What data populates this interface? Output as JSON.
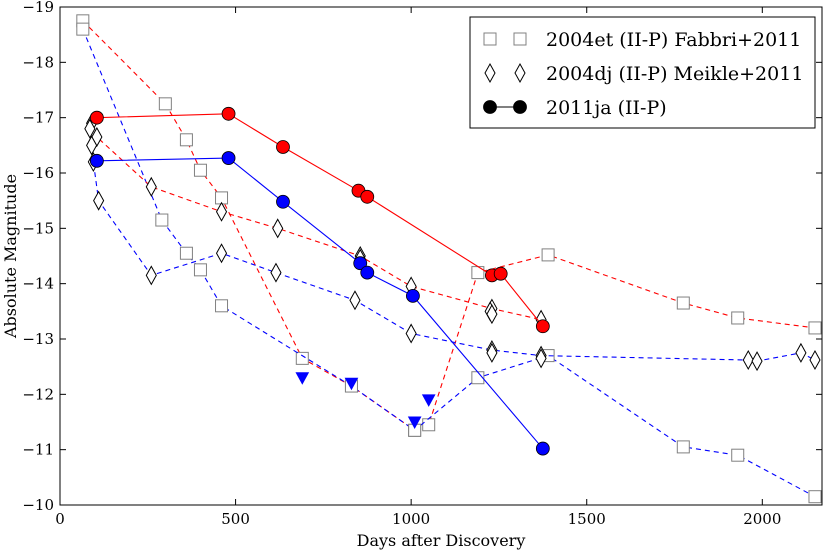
{
  "chart_data": {
    "type": "line",
    "title": "",
    "xlabel": "Days after Discovery",
    "ylabel": "Absolute Magnitude",
    "xlim": [
      0,
      2170
    ],
    "ylim": [
      -19,
      -10
    ],
    "y_inverted": true,
    "grid": false,
    "legend_position": "top-right",
    "xticks": [
      0,
      500,
      1000,
      1500,
      2000
    ],
    "yticks": [
      -19,
      -18,
      -17,
      -16,
      -15,
      -14,
      -13,
      -12,
      -11,
      -10
    ],
    "xtick_labels": [
      "0",
      "500",
      "1000",
      "1500",
      "2000"
    ],
    "ytick_labels": [
      "−19",
      "−18",
      "−17",
      "−16",
      "−15",
      "−14",
      "−13",
      "−12",
      "−11",
      "−10"
    ],
    "legend": [
      {
        "label": "2004et (II-P) Fabbri+2011",
        "marker": "square"
      },
      {
        "label": "2004dj (II-P) Meikle+2011",
        "marker": "diamond"
      },
      {
        "label": "2011ja (II-P)",
        "marker": "circle"
      }
    ],
    "colors": {
      "red": "#ff0000",
      "blue": "#0000ff",
      "marker_edge": "#000000",
      "open_marker_edge": "#808080"
    },
    "series": [
      {
        "name": "2004et red",
        "color": "#ff0000",
        "dashed": true,
        "marker": "square",
        "points": [
          [
            65,
            -18.75
          ],
          [
            300,
            -17.25
          ],
          [
            360,
            -16.6
          ],
          [
            400,
            -16.05
          ],
          [
            460,
            -15.55
          ],
          [
            690,
            -12.65
          ],
          [
            830,
            -12.15
          ],
          [
            1010,
            -11.35
          ],
          [
            1050,
            -11.45
          ],
          [
            1190,
            -14.2
          ],
          [
            1390,
            -14.52
          ],
          [
            1775,
            -13.65
          ],
          [
            1930,
            -13.38
          ],
          [
            2150,
            -13.2
          ]
        ]
      },
      {
        "name": "2004et blue",
        "color": "#0000ff",
        "dashed": true,
        "marker": "square",
        "points": [
          [
            65,
            -18.6
          ],
          [
            290,
            -15.15
          ],
          [
            360,
            -14.55
          ],
          [
            400,
            -14.25
          ],
          [
            460,
            -13.6
          ],
          [
            830,
            -12.15
          ],
          [
            1010,
            -11.35
          ],
          [
            1190,
            -12.3
          ],
          [
            1390,
            -12.7
          ],
          [
            1775,
            -11.05
          ],
          [
            1930,
            -10.9
          ],
          [
            2150,
            -10.15
          ]
        ]
      },
      {
        "name": "2004et blue limits",
        "color": "#0000ff",
        "dashed": false,
        "marker": "triangle-down",
        "points": [
          [
            690,
            -12.3
          ],
          [
            830,
            -12.2
          ],
          [
            1010,
            -11.5
          ],
          [
            1050,
            -11.9
          ]
        ]
      },
      {
        "name": "2004dj red",
        "color": "#ff0000",
        "dashed": true,
        "marker": "diamond",
        "points": [
          [
            90,
            -16.9
          ],
          [
            105,
            -16.65
          ],
          [
            260,
            -15.75
          ],
          [
            460,
            -15.3
          ],
          [
            620,
            -15.0
          ],
          [
            855,
            -14.5
          ],
          [
            1000,
            -13.95
          ],
          [
            1230,
            -13.55
          ],
          [
            1370,
            -13.35
          ]
        ]
      },
      {
        "name": "2004dj blue",
        "color": "#0000ff",
        "dashed": true,
        "marker": "diamond",
        "points": [
          [
            90,
            -16.5
          ],
          [
            95,
            -16.2
          ],
          [
            110,
            -15.5
          ],
          [
            260,
            -14.15
          ],
          [
            460,
            -14.55
          ],
          [
            615,
            -14.2
          ],
          [
            840,
            -13.7
          ],
          [
            1000,
            -13.1
          ],
          [
            1230,
            -12.8
          ],
          [
            1370,
            -12.7
          ],
          [
            1960,
            -12.62
          ],
          [
            1985,
            -12.6
          ],
          [
            2110,
            -12.75
          ],
          [
            2150,
            -12.62
          ]
        ]
      },
      {
        "name": "2004dj extra",
        "color": "#000000",
        "dashed": false,
        "marker": "diamond",
        "points": [
          [
            85,
            -16.8
          ],
          [
            855,
            -14.45
          ],
          [
            1225,
            -13.5
          ],
          [
            1230,
            -13.45
          ],
          [
            1230,
            -12.75
          ],
          [
            1370,
            -12.65
          ]
        ]
      },
      {
        "name": "2011ja red",
        "color": "#ff0000",
        "dashed": false,
        "marker": "circle",
        "points": [
          [
            105,
            -17.0
          ],
          [
            480,
            -17.07
          ],
          [
            635,
            -16.47
          ],
          [
            850,
            -15.68
          ],
          [
            875,
            -15.57
          ],
          [
            1230,
            -14.15
          ],
          [
            1255,
            -14.18
          ],
          [
            1375,
            -13.23
          ]
        ]
      },
      {
        "name": "2011ja blue",
        "color": "#0000ff",
        "dashed": false,
        "marker": "circle",
        "points": [
          [
            105,
            -16.22
          ],
          [
            480,
            -16.27
          ],
          [
            635,
            -15.48
          ],
          [
            855,
            -14.37
          ],
          [
            875,
            -14.2
          ],
          [
            1005,
            -13.78
          ],
          [
            1375,
            -11.02
          ]
        ]
      }
    ]
  }
}
